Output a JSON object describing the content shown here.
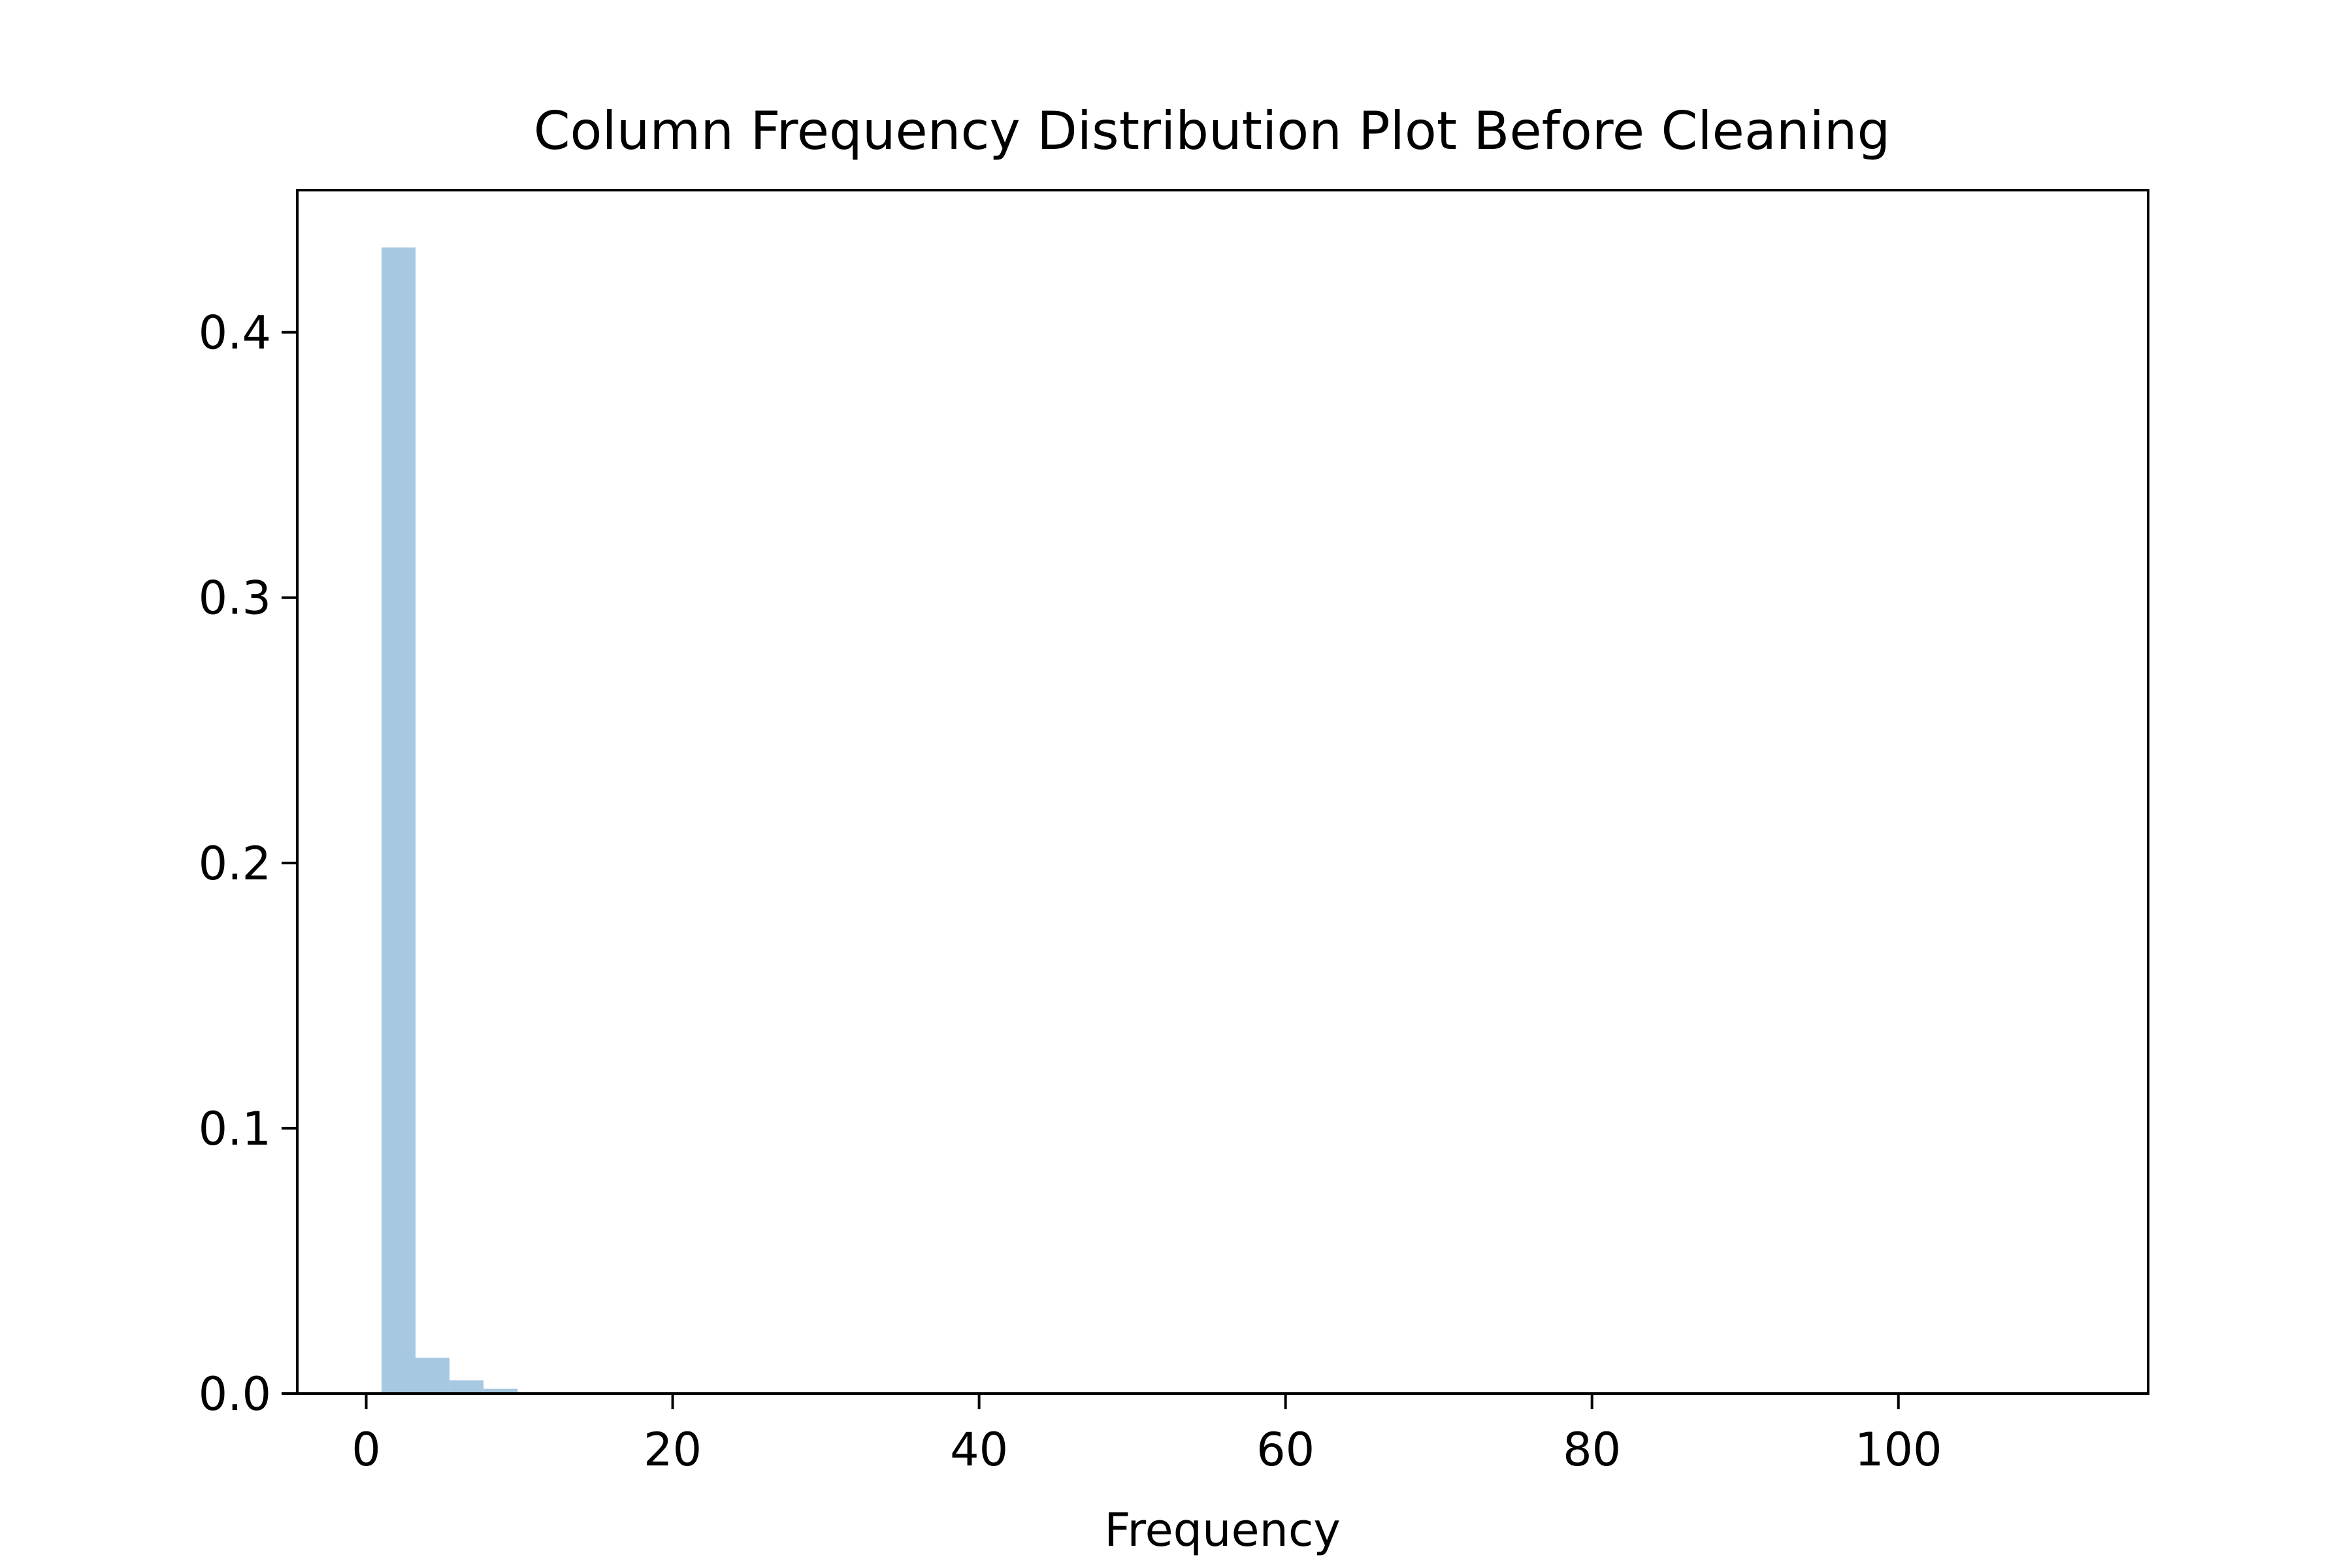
{
  "chart_data": {
    "type": "bar",
    "title": "Column Frequency Distribution Plot Before Cleaning",
    "xlabel": "Frequency",
    "ylabel": "",
    "xlim": [
      -4.5,
      116.3
    ],
    "ylim": [
      0,
      0.4536
    ],
    "xticks": [
      0,
      20,
      40,
      60,
      80,
      100
    ],
    "xtick_labels": [
      "0",
      "20",
      "40",
      "60",
      "80",
      "100"
    ],
    "yticks": [
      0,
      0.1,
      0.2,
      0.3,
      0.4
    ],
    "ytick_labels": [
      "0.0",
      "0.1",
      "0.2",
      "0.3",
      "0.4"
    ],
    "grid": false,
    "bar_color": "#a6c8e0",
    "bins": [
      {
        "x0": 1.0,
        "x1": 3.22,
        "value": 0.432
      },
      {
        "x0": 3.22,
        "x1": 5.44,
        "value": 0.0135
      },
      {
        "x0": 5.44,
        "x1": 7.66,
        "value": 0.005
      },
      {
        "x0": 7.66,
        "x1": 9.88,
        "value": 0.0018
      },
      {
        "x0": 9.88,
        "x1": 12.1,
        "value": 0.0006
      },
      {
        "x0": 12.1,
        "x1": 14.32,
        "value": 0.0003
      },
      {
        "x0": 14.32,
        "x1": 16.54,
        "value": 0.0002
      }
    ]
  }
}
